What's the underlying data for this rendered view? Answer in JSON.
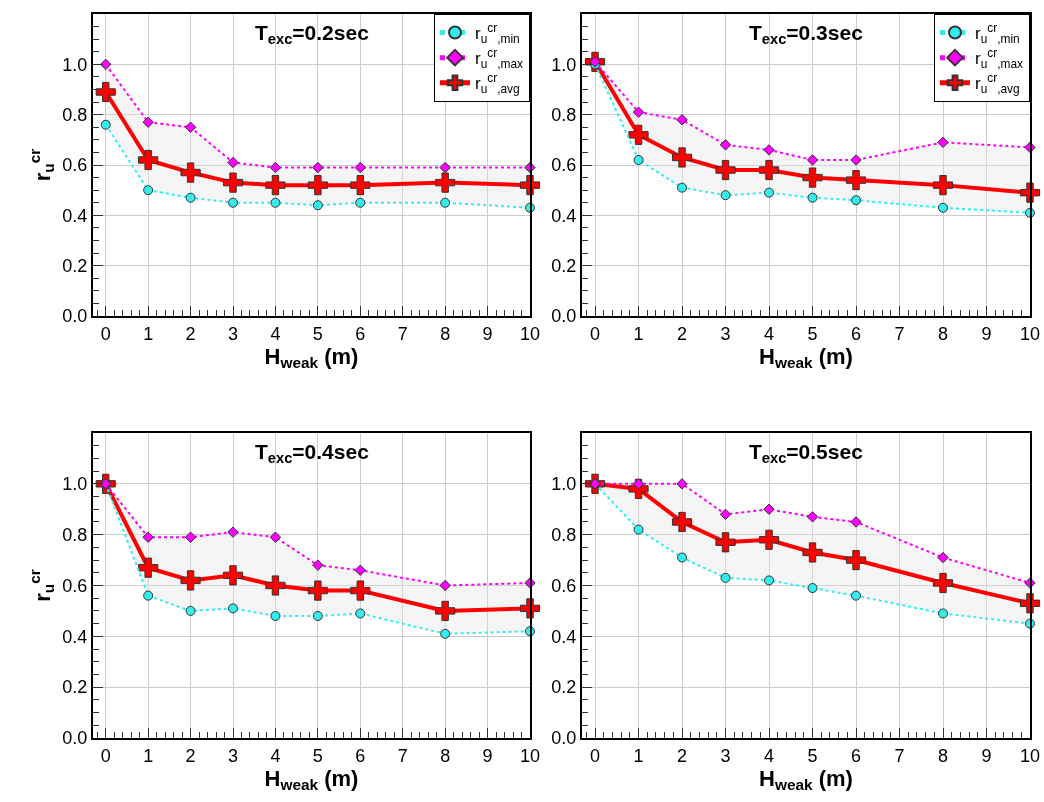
{
  "chart_data": [
    {
      "type": "line",
      "title": "T$_{exc}$=0.2sec",
      "xlabel": "H$_{weak}$ (m)",
      "ylabel": "r$_{u}$$^{cr}$",
      "x": [
        0,
        1,
        2,
        3,
        4,
        5,
        6,
        8,
        10
      ],
      "xlim": [
        -0.3,
        10
      ],
      "xticks": [
        0,
        1,
        2,
        3,
        4,
        5,
        6,
        7,
        8,
        9,
        10
      ],
      "ylim": [
        0,
        1.2
      ],
      "yticks": [
        {
          "value": 0,
          "label": "0.0"
        },
        {
          "value": 0.2,
          "label": "0.2"
        },
        {
          "value": 0.4,
          "label": "0.4"
        },
        {
          "value": 0.6,
          "label": "0.6"
        },
        {
          "value": 0.8,
          "label": "0.8"
        },
        {
          "value": 1,
          "label": "1.0"
        }
      ],
      "grid": true,
      "legend": "top right",
      "series": [
        {
          "name": "r$_{u}$$^{cr}$$_{,min}$",
          "color": "#33eeee",
          "marker": "circle",
          "line_style": "dotted",
          "values": [
            0.76,
            0.5,
            0.47,
            0.45,
            0.45,
            0.44,
            0.45,
            0.45,
            0.43
          ]
        },
        {
          "name": "r$_{u}$$^{cr}$$_{,max}$",
          "color": "#ff00ff",
          "marker": "diamond",
          "line_style": "dotted",
          "values": [
            1.0,
            0.77,
            0.75,
            0.61,
            0.59,
            0.59,
            0.59,
            0.59,
            0.59
          ]
        },
        {
          "name": "r$_{u}$$^{cr}$$_{,avg}$",
          "color": "#ff0000",
          "marker": "cross",
          "line_style": "solid",
          "values": [
            0.89,
            0.62,
            0.57,
            0.53,
            0.52,
            0.52,
            0.52,
            0.53,
            0.52
          ],
          "lower": [
            0.76,
            0.5,
            0.47,
            0.45,
            0.45,
            0.44,
            0.45,
            0.45,
            0.43
          ],
          "upper": [
            1.0,
            0.77,
            0.75,
            0.61,
            0.59,
            0.59,
            0.59,
            0.59,
            0.59
          ]
        }
      ]
    },
    {
      "type": "line",
      "title": "T$_{exc}$=0.3sec",
      "xlabel": "H$_{weak}$ (m)",
      "x": [
        0,
        1,
        2,
        3,
        4,
        5,
        6,
        8,
        10
      ],
      "xlim": [
        -0.3,
        10
      ],
      "xticks": [
        0,
        1,
        2,
        3,
        4,
        5,
        6,
        7,
        8,
        9,
        10
      ],
      "ylim": [
        0,
        1.2
      ],
      "yticks": [
        {
          "value": 0,
          "label": "0.0"
        },
        {
          "value": 0.2,
          "label": "0.2"
        },
        {
          "value": 0.4,
          "label": "0.4"
        },
        {
          "value": 0.6,
          "label": "0.6"
        },
        {
          "value": 0.8,
          "label": "0.8"
        },
        {
          "value": 1,
          "label": "1.0"
        }
      ],
      "grid": true,
      "legend": "top right",
      "series": [
        {
          "name": "r$_{u}$$^{cr}$$_{,min}$",
          "color": "#33eeee",
          "marker": "circle",
          "line_style": "dotted",
          "values": [
            1.0,
            0.62,
            0.51,
            0.48,
            0.49,
            0.47,
            0.46,
            0.43,
            0.41
          ]
        },
        {
          "name": "r$_{u}$$^{cr}$$_{,max}$",
          "color": "#ff00ff",
          "marker": "diamond",
          "line_style": "dotted",
          "values": [
            1.01,
            0.81,
            0.78,
            0.68,
            0.66,
            0.62,
            0.62,
            0.69,
            0.67
          ]
        },
        {
          "name": "r$_{u}$$^{cr}$$_{,avg}$",
          "color": "#ff0000",
          "marker": "cross",
          "line_style": "solid",
          "values": [
            1.01,
            0.72,
            0.63,
            0.58,
            0.58,
            0.55,
            0.54,
            0.52,
            0.49
          ],
          "lower": [
            1.0,
            0.62,
            0.51,
            0.48,
            0.49,
            0.47,
            0.46,
            0.43,
            0.41
          ],
          "upper": [
            1.01,
            0.81,
            0.78,
            0.68,
            0.66,
            0.62,
            0.62,
            0.69,
            0.67
          ]
        }
      ]
    },
    {
      "type": "line",
      "title": "T$_{exc}$=0.4sec",
      "xlabel": "H$_{weak}$ (m)",
      "ylabel": "r$_{u}$$^{cr}$",
      "x": [
        0,
        1,
        2,
        3,
        4,
        5,
        6,
        8,
        10
      ],
      "xlim": [
        -0.3,
        10
      ],
      "xticks": [
        0,
        1,
        2,
        3,
        4,
        5,
        6,
        7,
        8,
        9,
        10
      ],
      "ylim": [
        0,
        1.2
      ],
      "yticks": [
        {
          "value": 0,
          "label": "0.0"
        },
        {
          "value": 0.2,
          "label": "0.2"
        },
        {
          "value": 0.4,
          "label": "0.4"
        },
        {
          "value": 0.6,
          "label": "0.6"
        },
        {
          "value": 0.8,
          "label": "0.8"
        },
        {
          "value": 1,
          "label": "1.0"
        }
      ],
      "grid": true,
      "series": [
        {
          "color": "#33eeee",
          "marker": "circle",
          "line_style": "dotted",
          "values": [
            1.0,
            0.56,
            0.5,
            0.51,
            0.48,
            0.48,
            0.49,
            0.41,
            0.42
          ]
        },
        {
          "color": "#ff00ff",
          "marker": "diamond",
          "line_style": "dotted",
          "values": [
            1.0,
            0.79,
            0.79,
            0.81,
            0.79,
            0.68,
            0.66,
            0.6,
            0.61
          ]
        },
        {
          "color": "#ff0000",
          "marker": "cross",
          "line_style": "solid",
          "values": [
            1.0,
            0.67,
            0.62,
            0.64,
            0.6,
            0.58,
            0.58,
            0.5,
            0.51
          ],
          "lower": [
            1.0,
            0.56,
            0.5,
            0.51,
            0.48,
            0.48,
            0.49,
            0.41,
            0.42
          ],
          "upper": [
            1.0,
            0.79,
            0.79,
            0.81,
            0.79,
            0.68,
            0.66,
            0.6,
            0.61
          ]
        }
      ]
    },
    {
      "type": "line",
      "title": "T$_{exc}$=0.5sec",
      "xlabel": "H$_{weak}$ (m)",
      "x": [
        0,
        1,
        2,
        3,
        4,
        5,
        6,
        8,
        10
      ],
      "xlim": [
        -0.3,
        10
      ],
      "xticks": [
        0,
        1,
        2,
        3,
        4,
        5,
        6,
        7,
        8,
        9,
        10
      ],
      "ylim": [
        0,
        1.2
      ],
      "yticks": [
        {
          "value": 0,
          "label": "0.0"
        },
        {
          "value": 0.2,
          "label": "0.2"
        },
        {
          "value": 0.4,
          "label": "0.4"
        },
        {
          "value": 0.6,
          "label": "0.6"
        },
        {
          "value": 0.8,
          "label": "0.8"
        },
        {
          "value": 1,
          "label": "1.0"
        }
      ],
      "grid": true,
      "series": [
        {
          "color": "#33eeee",
          "marker": "circle",
          "line_style": "dotted",
          "values": [
            1.0,
            0.82,
            0.71,
            0.63,
            0.62,
            0.59,
            0.56,
            0.49,
            0.45
          ]
        },
        {
          "color": "#ff00ff",
          "marker": "diamond",
          "line_style": "dotted",
          "values": [
            1.0,
            1.0,
            1.0,
            0.88,
            0.9,
            0.87,
            0.85,
            0.71,
            0.61
          ]
        },
        {
          "color": "#ff0000",
          "marker": "cross",
          "line_style": "solid",
          "values": [
            1.0,
            0.98,
            0.85,
            0.77,
            0.78,
            0.73,
            0.7,
            0.61,
            0.53
          ],
          "lower": [
            1.0,
            0.82,
            0.71,
            0.63,
            0.62,
            0.59,
            0.56,
            0.49,
            0.45
          ],
          "upper": [
            1.0,
            1.0,
            1.0,
            0.88,
            0.9,
            0.87,
            0.85,
            0.71,
            0.61
          ]
        }
      ]
    }
  ]
}
